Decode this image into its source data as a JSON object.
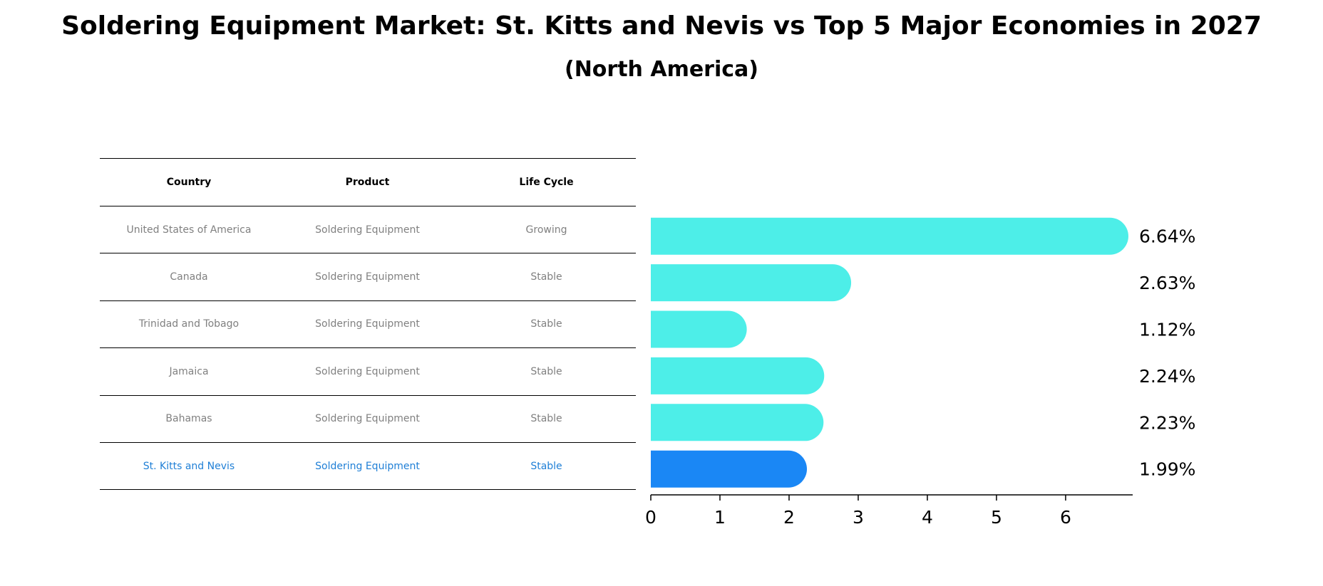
{
  "title": "Soldering Equipment Market: St. Kitts and Nevis vs Top 5 Major Economies in 2027",
  "subtitle": "(North America)",
  "table": {
    "headers": [
      "Country",
      "Product",
      "Life Cycle"
    ],
    "rows": [
      [
        "United States of America",
        "Soldering Equipment",
        "Growing"
      ],
      [
        "Canada",
        "Soldering Equipment",
        "Stable"
      ],
      [
        "Trinidad and Tobago",
        "Soldering Equipment",
        "Stable"
      ],
      [
        "Jamaica",
        "Soldering Equipment",
        "Stable"
      ],
      [
        "Bahamas",
        "Soldering Equipment",
        "Stable"
      ],
      [
        "St. Kitts and Nevis",
        "Soldering Equipment",
        "Stable"
      ]
    ]
  },
  "chart_data": {
    "type": "bar",
    "orientation": "horizontal",
    "categories": [
      "United States of America",
      "Canada",
      "Trinidad and Tobago",
      "Jamaica",
      "Bahamas",
      "St. Kitts and Nevis"
    ],
    "values": [
      6.64,
      2.63,
      1.12,
      2.24,
      2.23,
      1.99
    ],
    "labels": [
      "6.64%",
      "2.63%",
      "1.12%",
      "2.24%",
      "2.23%",
      "1.99%"
    ],
    "highlight_index": 5,
    "xlim": [
      0,
      6.97
    ],
    "xticks": [
      0,
      1,
      2,
      3,
      4,
      5,
      6
    ],
    "colors": {
      "bar": "#4deee8",
      "highlight": "#1a87f5"
    }
  }
}
